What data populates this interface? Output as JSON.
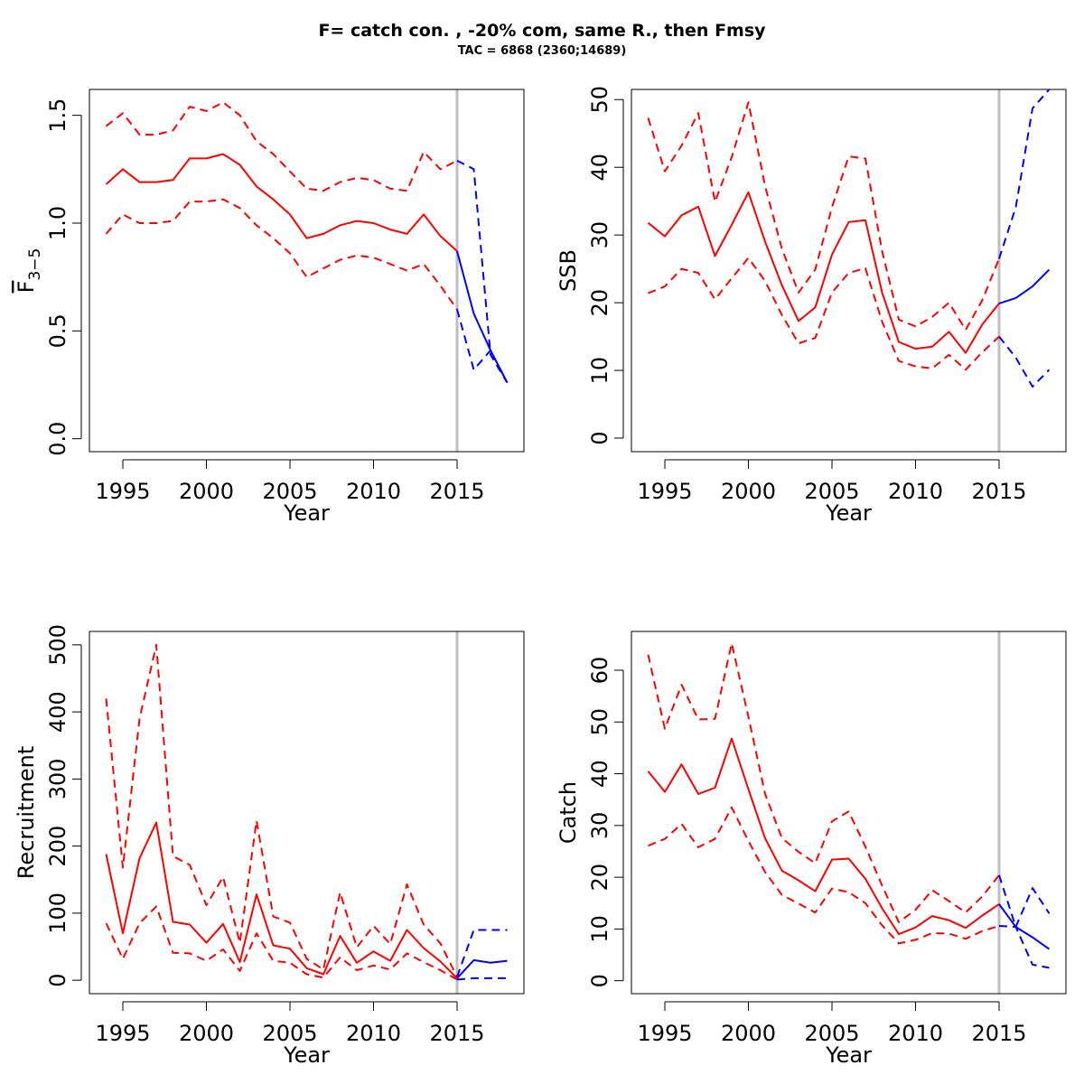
{
  "title": "F= catch con. , -20% com, same R., then Fmsy",
  "subtitle": "TAC = 6868 (2360;14689)",
  "colors": {
    "historic": "#ff0000",
    "forecast": "#0000ff",
    "divider": "#bebebe",
    "axis": "#000000"
  },
  "chart_data": [
    {
      "type": "line",
      "ylabel_main": "F",
      "ylabel_sub": "3−5",
      "xlabel": "Year",
      "xlim": [
        1993,
        2019
      ],
      "ylim": [
        -0.06,
        1.62
      ],
      "xticks": [
        "1995",
        "2000",
        "2005",
        "2010",
        "2015"
      ],
      "yticks": [
        "0.0",
        "0.5",
        "1.0",
        "1.5"
      ],
      "divider_x": 2015,
      "series": [
        {
          "style": "historic-solid",
          "x": [
            1994,
            1995,
            1996,
            1997,
            1998,
            1999,
            2000,
            2001,
            2002,
            2003,
            2004,
            2005,
            2006,
            2007,
            2008,
            2009,
            2010,
            2011,
            2012,
            2013,
            2014,
            2015
          ],
          "values": [
            1.18,
            1.25,
            1.19,
            1.19,
            1.2,
            1.3,
            1.3,
            1.32,
            1.27,
            1.17,
            1.11,
            1.04,
            0.93,
            0.95,
            0.99,
            1.01,
            1.0,
            0.97,
            0.95,
            1.04,
            0.94,
            0.87
          ]
        },
        {
          "style": "historic-dashed",
          "x": [
            1994,
            1995,
            1996,
            1997,
            1998,
            1999,
            2000,
            2001,
            2002,
            2003,
            2004,
            2005,
            2006,
            2007,
            2008,
            2009,
            2010,
            2011,
            2012,
            2013,
            2014,
            2015
          ],
          "values": [
            1.45,
            1.51,
            1.41,
            1.41,
            1.43,
            1.54,
            1.52,
            1.56,
            1.5,
            1.38,
            1.32,
            1.24,
            1.16,
            1.15,
            1.19,
            1.21,
            1.2,
            1.16,
            1.15,
            1.33,
            1.25,
            1.29
          ]
        },
        {
          "style": "historic-dashed",
          "x": [
            1994,
            1995,
            1996,
            1997,
            1998,
            1999,
            2000,
            2001,
            2002,
            2003,
            2004,
            2005,
            2006,
            2007,
            2008,
            2009,
            2010,
            2011,
            2012,
            2013,
            2014,
            2015
          ],
          "values": [
            0.95,
            1.04,
            1.0,
            1.0,
            1.01,
            1.1,
            1.1,
            1.11,
            1.07,
            0.99,
            0.93,
            0.86,
            0.75,
            0.79,
            0.83,
            0.85,
            0.84,
            0.81,
            0.78,
            0.81,
            0.71,
            0.6
          ]
        },
        {
          "style": "forecast-solid",
          "x": [
            2015,
            2016,
            2017,
            2018
          ],
          "values": [
            0.87,
            0.58,
            0.41,
            0.26
          ]
        },
        {
          "style": "forecast-dashed",
          "x": [
            2015,
            2016,
            2017,
            2018
          ],
          "values": [
            1.29,
            1.25,
            0.39,
            0.26
          ]
        },
        {
          "style": "forecast-dashed",
          "x": [
            2015,
            2016,
            2017,
            2018
          ],
          "values": [
            0.6,
            0.32,
            0.41,
            0.26
          ]
        }
      ]
    },
    {
      "type": "line",
      "ylabel_main": "SSB",
      "xlabel": "Year",
      "xlim": [
        1993,
        2019
      ],
      "ylim": [
        -2,
        51.5
      ],
      "xticks": [
        "1995",
        "2000",
        "2005",
        "2010",
        "2015"
      ],
      "yticks": [
        "0",
        "10",
        "20",
        "30",
        "40",
        "50"
      ],
      "divider_x": 2015,
      "series": [
        {
          "style": "historic-solid",
          "x": [
            1994,
            1995,
            1996,
            1997,
            1998,
            1999,
            2000,
            2001,
            2002,
            2003,
            2004,
            2005,
            2006,
            2007,
            2008,
            2009,
            2010,
            2011,
            2012,
            2013,
            2014,
            2015
          ],
          "values": [
            31.8,
            29.8,
            32.9,
            34.2,
            26.9,
            31.5,
            36.3,
            29.0,
            22.6,
            17.3,
            19.3,
            27.1,
            31.9,
            32.2,
            21.5,
            14.2,
            13.2,
            13.5,
            15.7,
            12.6,
            16.8,
            19.9
          ]
        },
        {
          "style": "historic-dashed",
          "x": [
            1994,
            1995,
            1996,
            1997,
            1998,
            1999,
            2000,
            2001,
            2002,
            2003,
            2004,
            2005,
            2006,
            2007,
            2008,
            2009,
            2010,
            2011,
            2012,
            2013,
            2014,
            2015
          ],
          "values": [
            47.3,
            39.4,
            43.2,
            48.0,
            34.9,
            41.5,
            49.6,
            37.2,
            28.0,
            21.5,
            24.9,
            34.1,
            41.6,
            41.3,
            27.6,
            17.5,
            16.5,
            17.9,
            20.0,
            16.0,
            20.4,
            26.5
          ]
        },
        {
          "style": "historic-dashed",
          "x": [
            1994,
            1995,
            1996,
            1997,
            1998,
            1999,
            2000,
            2001,
            2002,
            2003,
            2004,
            2005,
            2006,
            2007,
            2008,
            2009,
            2010,
            2011,
            2012,
            2013,
            2014,
            2015
          ],
          "values": [
            21.4,
            22.4,
            25.0,
            24.4,
            20.5,
            23.6,
            26.6,
            23.2,
            18.2,
            14.0,
            14.8,
            21.5,
            24.4,
            25.1,
            17.2,
            11.4,
            10.6,
            10.3,
            12.3,
            10.1,
            12.7,
            15.0
          ]
        },
        {
          "style": "forecast-solid",
          "x": [
            2015,
            2016,
            2017,
            2018
          ],
          "values": [
            19.9,
            20.7,
            22.4,
            24.9
          ]
        },
        {
          "style": "forecast-dashed",
          "x": [
            2015,
            2016,
            2017,
            2018
          ],
          "values": [
            26.5,
            34.1,
            48.7,
            51.5
          ]
        },
        {
          "style": "forecast-dashed",
          "x": [
            2015,
            2016,
            2017,
            2018
          ],
          "values": [
            15.0,
            11.9,
            7.6,
            10.1
          ]
        }
      ]
    },
    {
      "type": "line",
      "ylabel_main": "Recruitment",
      "xlabel": "Year",
      "xlim": [
        1993,
        2019
      ],
      "ylim": [
        -20,
        520
      ],
      "xticks": [
        "1995",
        "2000",
        "2005",
        "2010",
        "2015"
      ],
      "yticks": [
        "0",
        "100",
        "200",
        "300",
        "400",
        "500"
      ],
      "divider_x": 2015,
      "series": [
        {
          "style": "historic-solid",
          "x": [
            1994,
            1995,
            1996,
            1997,
            1998,
            1999,
            2000,
            2001,
            2002,
            2003,
            2004,
            2005,
            2006,
            2007,
            2008,
            2009,
            2010,
            2011,
            2012,
            2013,
            2014,
            2015
          ],
          "values": [
            188,
            70,
            182,
            235,
            87,
            83,
            56,
            84,
            27,
            128,
            52,
            47,
            18,
            9,
            66,
            26,
            43,
            29,
            75,
            48,
            28,
            3
          ]
        },
        {
          "style": "historic-dashed",
          "x": [
            1994,
            1995,
            1996,
            1997,
            1998,
            1999,
            2000,
            2001,
            2002,
            2003,
            2004,
            2005,
            2006,
            2007,
            2008,
            2009,
            2010,
            2011,
            2012,
            2013,
            2014,
            2015
          ],
          "values": [
            420,
            168,
            390,
            500,
            185,
            172,
            112,
            154,
            56,
            238,
            95,
            86,
            32,
            16,
            131,
            49,
            81,
            54,
            143,
            83,
            55,
            5
          ]
        },
        {
          "style": "historic-dashed",
          "x": [
            1994,
            1995,
            1996,
            1997,
            1998,
            1999,
            2000,
            2001,
            2002,
            2003,
            2004,
            2005,
            2006,
            2007,
            2008,
            2009,
            2010,
            2011,
            2012,
            2013,
            2014,
            2015
          ],
          "values": [
            85,
            32,
            85,
            110,
            41,
            40,
            29,
            46,
            14,
            70,
            29,
            26,
            9,
            4,
            34,
            15,
            22,
            16,
            40,
            27,
            15,
            1
          ]
        },
        {
          "style": "forecast-solid",
          "x": [
            2015,
            2016,
            2017,
            2018
          ],
          "values": [
            3,
            30,
            26,
            29
          ]
        },
        {
          "style": "forecast-dashed",
          "x": [
            2015,
            2016,
            2017,
            2018
          ],
          "values": [
            5,
            75,
            75,
            75
          ]
        },
        {
          "style": "forecast-dashed",
          "x": [
            2015,
            2016,
            2017,
            2018
          ],
          "values": [
            1,
            3,
            3,
            3
          ]
        }
      ]
    },
    {
      "type": "line",
      "ylabel_main": "Catch",
      "xlabel": "Year",
      "xlim": [
        1993,
        2019
      ],
      "ylim": [
        -2.5,
        67.5
      ],
      "xticks": [
        "1995",
        "2000",
        "2005",
        "2010",
        "2015"
      ],
      "yticks": [
        "0",
        "10",
        "20",
        "30",
        "40",
        "50",
        "60"
      ],
      "divider_x": 2015,
      "series": [
        {
          "style": "historic-solid",
          "x": [
            1994,
            1995,
            1996,
            1997,
            1998,
            1999,
            2000,
            2001,
            2002,
            2003,
            2004,
            2005,
            2006,
            2007,
            2008,
            2009,
            2010,
            2011,
            2012,
            2013,
            2014,
            2015
          ],
          "values": [
            40.5,
            36.5,
            41.8,
            36.1,
            37.3,
            46.8,
            37.0,
            27.5,
            21.3,
            19.4,
            17.3,
            23.4,
            23.6,
            19.7,
            14.0,
            9.0,
            10.3,
            12.5,
            11.7,
            10.2,
            12.6,
            14.8
          ]
        },
        {
          "style": "historic-dashed",
          "x": [
            1994,
            1995,
            1996,
            1997,
            1998,
            1999,
            2000,
            2001,
            2002,
            2003,
            2004,
            2005,
            2006,
            2007,
            2008,
            2009,
            2010,
            2011,
            2012,
            2013,
            2014,
            2015
          ],
          "values": [
            63.0,
            48.7,
            57.2,
            50.5,
            50.6,
            65.2,
            51.0,
            36.1,
            27.6,
            24.9,
            22.7,
            30.8,
            32.7,
            25.9,
            18.4,
            11.3,
            13.7,
            17.5,
            15.4,
            13.2,
            16.3,
            20.4
          ]
        },
        {
          "style": "historic-dashed",
          "x": [
            1994,
            1995,
            1996,
            1997,
            1998,
            1999,
            2000,
            2001,
            2002,
            2003,
            2004,
            2005,
            2006,
            2007,
            2008,
            2009,
            2010,
            2011,
            2012,
            2013,
            2014,
            2015
          ],
          "values": [
            26.1,
            27.4,
            30.3,
            25.8,
            27.4,
            33.5,
            27.0,
            21.0,
            16.6,
            14.9,
            13.2,
            17.8,
            17.1,
            15.0,
            10.7,
            7.2,
            7.9,
            9.2,
            9.1,
            8.1,
            9.6,
            10.6
          ]
        },
        {
          "style": "forecast-solid",
          "x": [
            2015,
            2016,
            2017,
            2018
          ],
          "values": [
            14.8,
            10.4,
            8.4,
            6.1
          ]
        },
        {
          "style": "forecast-dashed",
          "x": [
            2015,
            2016,
            2017,
            2018
          ],
          "values": [
            20.4,
            10.4,
            17.9,
            13.0
          ]
        },
        {
          "style": "forecast-dashed",
          "x": [
            2015,
            2016,
            2017,
            2018
          ],
          "values": [
            10.6,
            10.4,
            3.1,
            2.5
          ]
        }
      ]
    }
  ]
}
